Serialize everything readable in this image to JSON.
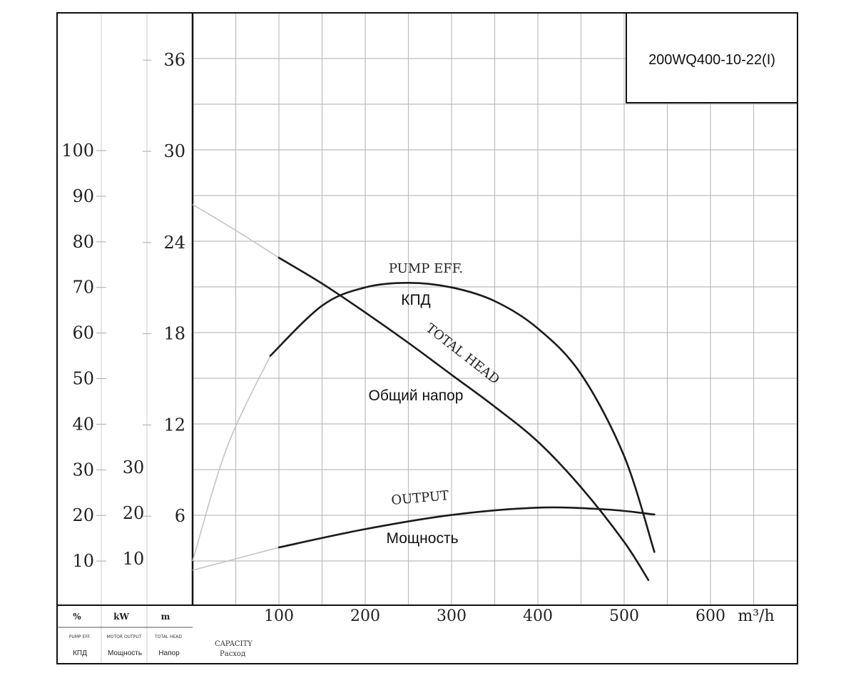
{
  "chart_data": {
    "type": "line",
    "model": "200WQ400-10-22(I)",
    "x": {
      "label": "CAPACITY",
      "label_ru": "Расход",
      "unit": "m³/h",
      "range": [
        0,
        700
      ],
      "ticks": [
        100,
        200,
        300,
        400,
        500,
        600
      ]
    },
    "axes": {
      "efficiency": {
        "unit": "%",
        "label_en": "PUMP EFF.",
        "label_ru": "КПД",
        "ticks": [
          10,
          20,
          30,
          40,
          50,
          60,
          70,
          80,
          90,
          100
        ]
      },
      "power": {
        "unit": "kW",
        "label_en": "MOTOR OUTPUT",
        "label_ru": "Мощность",
        "ticks": [
          10,
          20,
          30
        ]
      },
      "head": {
        "unit": "m",
        "label_en": "TOTAL HEAD",
        "label_ru": "Напор",
        "ticks": [
          6,
          12,
          18,
          24,
          30,
          36
        ]
      }
    },
    "series": [
      {
        "name": "PUMP EFF.",
        "name_ru": "КПД",
        "axis": "efficiency",
        "color": "#1a1a1a",
        "x": [
          90,
          150,
          200,
          250,
          300,
          350,
          400,
          450,
          500,
          535
        ],
        "y": [
          55,
          66,
          70,
          71,
          70,
          67,
          61,
          51,
          33,
          12
        ],
        "extrapolated": {
          "x": [
            0,
            40,
            90
          ],
          "y": [
            10,
            35,
            55
          ]
        }
      },
      {
        "name": "TOTAL HEAD",
        "name_ru": "Общий напор",
        "axis": "head",
        "color": "#1a1a1a",
        "x": [
          100,
          150,
          200,
          250,
          300,
          350,
          400,
          450,
          500,
          528
        ],
        "y": [
          23,
          21.3,
          19.4,
          17.4,
          15.3,
          13.2,
          10.9,
          7.9,
          4.3,
          1.8
        ],
        "extrapolated": {
          "x": [
            0,
            50,
            100
          ],
          "y": [
            26.5,
            24.8,
            23
          ]
        }
      },
      {
        "name": "OUTPUT",
        "name_ru": "Мощность",
        "axis": "power",
        "color": "#1a1a1a",
        "x": [
          100,
          200,
          300,
          400,
          480,
          535
        ],
        "y": [
          12.5,
          16.5,
          19.6,
          21.2,
          20.8,
          19.7
        ],
        "extrapolated": {
          "x": [
            0,
            100
          ],
          "y": [
            7.5,
            12.5
          ]
        }
      }
    ],
    "grid": true,
    "legend": "none"
  }
}
